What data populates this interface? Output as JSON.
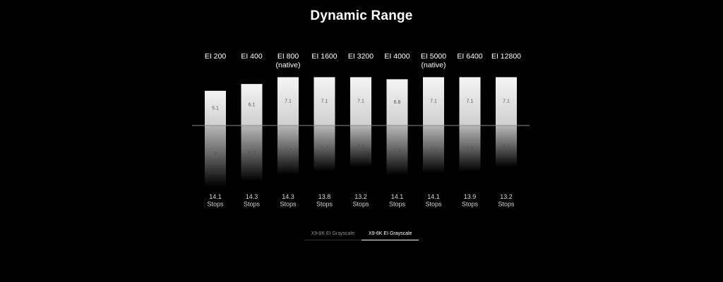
{
  "page": {
    "title": "Dynamic Range"
  },
  "tabs": [
    {
      "label": "X9-8K EI Grayscale",
      "active": false
    },
    {
      "label": "X9-6K EI Grayscale",
      "active": true
    }
  ],
  "colors": {
    "background": "#000000",
    "bar_top": "#f2f2f2",
    "bar_bottom": "#000000",
    "baseline": "#8a8a8a"
  },
  "chart_data": {
    "type": "bar",
    "title": "Dynamic Range",
    "categories": [
      [
        "EI 200"
      ],
      [
        "EI 400"
      ],
      [
        "EI 800",
        "(native)"
      ],
      [
        "EI 1600"
      ],
      [
        "EI 3200"
      ],
      [
        "EI 4000"
      ],
      [
        "EI 5000",
        "(native)"
      ],
      [
        "EI 6400"
      ],
      [
        "EI 12800"
      ]
    ],
    "series": [
      {
        "values": [
          5.1,
          6.1,
          7.1,
          7.1,
          7.1,
          6.8,
          7.1,
          7.1,
          7.1
        ],
        "labels": [
          "5.1",
          "6.1",
          "7.1",
          "7.1",
          "7.1",
          "6.8",
          "7.1",
          "7.1",
          "7.1"
        ]
      },
      {
        "values": [
          9,
          8.2,
          7.2,
          6.7,
          6.1,
          7.3,
          7.0,
          6.8,
          6.1
        ],
        "labels": [
          "9",
          "8.2",
          "7.2",
          "6.7",
          "6.1",
          "7.3",
          "7.0",
          "6.8",
          "6.1"
        ]
      }
    ],
    "totals": [
      {
        "value": "14.1",
        "unit": "Stops"
      },
      {
        "value": "14.3",
        "unit": "Stops"
      },
      {
        "value": "14.3",
        "unit": "Stops"
      },
      {
        "value": "13.8",
        "unit": "Stops"
      },
      {
        "value": "13.2",
        "unit": "Stops"
      },
      {
        "value": "14.1",
        "unit": "Stops"
      },
      {
        "value": "14.1",
        "unit": "Stops"
      },
      {
        "value": "13.9",
        "unit": "Stops"
      },
      {
        "value": "13.2",
        "unit": "Stops"
      }
    ],
    "grid": false,
    "legend": "none"
  }
}
